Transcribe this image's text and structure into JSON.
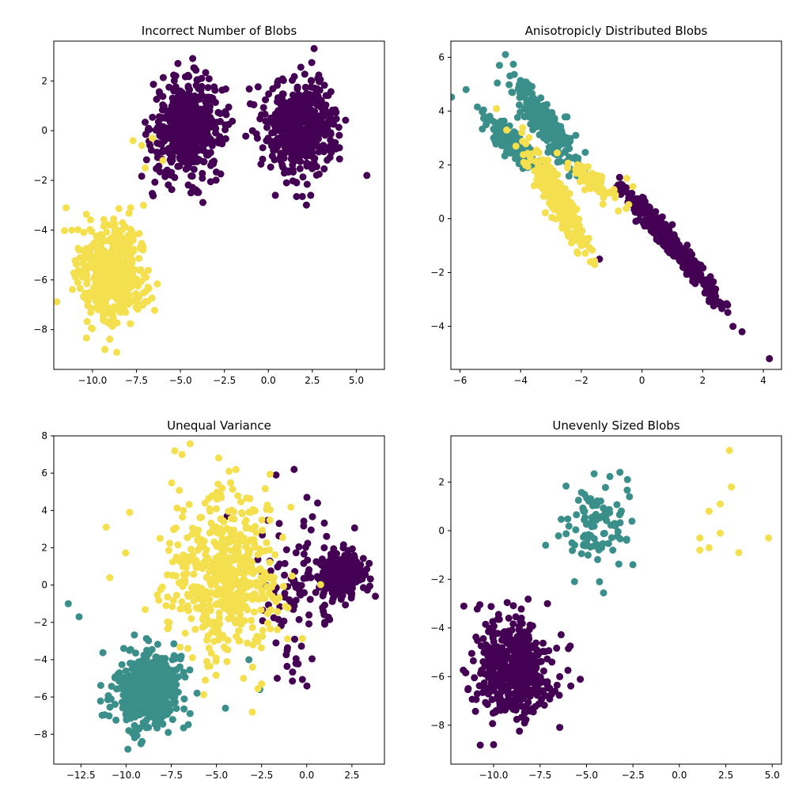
{
  "colors": {
    "purple": "#440154",
    "teal": "#3b8f8a",
    "yellow": "#f4e04f"
  },
  "chart_data": [
    {
      "type": "scatter",
      "title": "Incorrect Number of Blobs",
      "xlim": [
        -12.2,
        6.6
      ],
      "ylim": [
        -9.6,
        3.6
      ],
      "xticks": [
        -10.0,
        -7.5,
        -5.0,
        -2.5,
        0.0,
        2.5,
        5.0
      ],
      "xtick_labels": [
        "−10.0",
        "−7.5",
        "−5.0",
        "−2.5",
        "0.0",
        "2.5",
        "5.0"
      ],
      "yticks": [
        -8,
        -6,
        -4,
        -2,
        0,
        2
      ],
      "ytick_labels": [
        "−8",
        "−6",
        "−4",
        "−2",
        "0",
        "2"
      ],
      "series": [
        {
          "color": "purple",
          "blobs": [
            {
              "n": 500,
              "cx": -4.6,
              "cy": 0.1,
              "sx": 1.0,
              "sy": 0.95,
              "rho": 0
            },
            {
              "n": 500,
              "cx": 1.9,
              "cy": 0.2,
              "sx": 1.0,
              "sy": 0.95,
              "rho": 0
            }
          ],
          "points": [
            [
              -4.3,
              2.9
            ],
            [
              2.6,
              3.3
            ],
            [
              5.6,
              -1.8
            ],
            [
              0.4,
              -2.6
            ],
            [
              -4.4,
              -2.5
            ],
            [
              -0.9,
              0.0
            ]
          ]
        },
        {
          "color": "yellow",
          "blobs": [
            {
              "n": 500,
              "cx": -8.9,
              "cy": -5.7,
              "sx": 1.0,
              "sy": 1.0,
              "rho": 0
            }
          ],
          "points": [
            [
              -7.7,
              -0.4
            ],
            [
              -7.2,
              -0.6
            ],
            [
              -6.6,
              -0.3
            ],
            [
              -6.0,
              -1.2
            ],
            [
              -7.0,
              -1.5
            ],
            [
              -9.3,
              -8.8
            ],
            [
              -11.5,
              -3.1
            ],
            [
              -7.1,
              -3.0
            ]
          ]
        }
      ]
    },
    {
      "type": "scatter",
      "title": "Anisotropicly Distributed Blobs",
      "xlim": [
        -6.3,
        4.6
      ],
      "ylim": [
        -5.6,
        6.6
      ],
      "xticks": [
        -6,
        -4,
        -2,
        0,
        2,
        4
      ],
      "xtick_labels": [
        "−6",
        "−4",
        "−2",
        "0",
        "2",
        "4"
      ],
      "yticks": [
        -4,
        -2,
        0,
        2,
        4,
        6
      ],
      "ytick_labels": [
        "−4",
        "−2",
        "0",
        "2",
        "4",
        "6"
      ],
      "series": [
        {
          "color": "purple",
          "blobs": [
            {
              "n": 420,
              "cx": 1.0,
              "cy": -1.0,
              "sx": 0.75,
              "sy": 1.0,
              "rho": -0.97
            }
          ],
          "points": [
            [
              4.2,
              -5.2
            ],
            [
              3.3,
              -4.2
            ],
            [
              3.0,
              -4.0
            ],
            [
              -1.4,
              -1.5
            ]
          ]
        },
        {
          "color": "teal",
          "blobs": [
            {
              "n": 230,
              "cx": -3.2,
              "cy": 3.6,
              "sx": 0.55,
              "sy": 0.85,
              "rho": -0.9
            },
            {
              "n": 190,
              "cx": -4.3,
              "cy": 2.8,
              "sx": 0.45,
              "sy": 0.5,
              "rho": -0.88
            }
          ],
          "points": [
            [
              -5.8,
              4.8
            ],
            [
              -4.5,
              6.1
            ],
            [
              -5.2,
              3.8
            ],
            [
              -4.7,
              5.7
            ]
          ]
        },
        {
          "color": "yellow",
          "blobs": [
            {
              "n": 300,
              "cx": -2.8,
              "cy": 0.7,
              "sx": 0.5,
              "sy": 0.9,
              "rho": -0.9
            },
            {
              "n": 100,
              "cx": -1.6,
              "cy": 1.4,
              "sx": 0.4,
              "sy": 0.35,
              "rho": -0.85
            }
          ],
          "points": [
            [
              -0.5,
              1.5
            ],
            [
              -0.3,
              1.2
            ],
            [
              -1.7,
              -1.6
            ],
            [
              -2.0,
              -1.0
            ]
          ]
        }
      ]
    },
    {
      "type": "scatter",
      "title": "Unequal Variance",
      "xlim": [
        -14.0,
        4.3
      ],
      "ylim": [
        -9.6,
        8.0
      ],
      "xticks": [
        -12.5,
        -10.0,
        -7.5,
        -5.0,
        -2.5,
        0.0,
        2.5
      ],
      "xtick_labels": [
        "−12.5",
        "−10.0",
        "−7.5",
        "−5.0",
        "−2.5",
        "0.0",
        "2.5"
      ],
      "yticks": [
        -8,
        -6,
        -4,
        -2,
        0,
        2,
        4,
        6,
        8
      ],
      "ytick_labels": [
        "−8",
        "−6",
        "−4",
        "−2",
        "0",
        "2",
        "4",
        "6",
        "8"
      ],
      "series": [
        {
          "color": "purple",
          "blobs": [
            {
              "n": 350,
              "cx": 1.9,
              "cy": 0.5,
              "sx": 0.55,
              "sy": 0.55,
              "rho": 0
            },
            {
              "n": 110,
              "cx": -0.5,
              "cy": -0.2,
              "sx": 1.2,
              "sy": 2.2,
              "rho": 0
            }
          ],
          "points": [
            [
              -0.7,
              6.2
            ],
            [
              -1.7,
              5.9
            ],
            [
              0.6,
              4.4
            ],
            [
              -0.6,
              -4.2
            ],
            [
              3.8,
              -0.6
            ]
          ]
        },
        {
          "color": "teal",
          "blobs": [
            {
              "n": 500,
              "cx": -8.8,
              "cy": -5.6,
              "sx": 1.0,
              "sy": 1.0,
              "rho": 0
            }
          ],
          "points": [
            [
              -13.2,
              -1.0
            ],
            [
              -12.6,
              -1.7
            ],
            [
              -9.9,
              -8.8
            ],
            [
              -4.5,
              -6.6
            ],
            [
              -2.6,
              -5.6
            ],
            [
              -3.2,
              -4.0
            ]
          ]
        },
        {
          "color": "yellow",
          "blobs": [
            {
              "n": 520,
              "cx": -4.6,
              "cy": 0.5,
              "sx": 1.6,
              "sy": 2.2,
              "rho": 0
            }
          ],
          "points": [
            [
              -7.3,
              7.2
            ],
            [
              -6.9,
              7.0
            ],
            [
              -11.1,
              3.1
            ],
            [
              -9.8,
              3.9
            ],
            [
              -10.9,
              0.4
            ],
            [
              -2.5,
              -5.3
            ],
            [
              -3.0,
              -4.4
            ],
            [
              -3.5,
              -5.0
            ],
            [
              -4.3,
              6.1
            ]
          ]
        }
      ]
    },
    {
      "type": "scatter",
      "title": "Unevenly Sized Blobs",
      "xlim": [
        -12.3,
        5.5
      ],
      "ylim": [
        -9.6,
        3.9
      ],
      "xticks": [
        -10.0,
        -7.5,
        -5.0,
        -2.5,
        0.0,
        2.5,
        5.0
      ],
      "xtick_labels": [
        "−10.0",
        "−7.5",
        "−5.0",
        "−2.5",
        "0.0",
        "2.5",
        "5.0"
      ],
      "yticks": [
        -8,
        -6,
        -4,
        -2,
        0,
        2
      ],
      "ytick_labels": [
        "−8",
        "−6",
        "−4",
        "−2",
        "0",
        "2"
      ],
      "series": [
        {
          "color": "purple",
          "blobs": [
            {
              "n": 500,
              "cx": -8.9,
              "cy": -5.7,
              "sx": 1.0,
              "sy": 1.0,
              "rho": 0
            }
          ],
          "points": [
            [
              -10.0,
              -8.8
            ],
            [
              -11.6,
              -3.1
            ],
            [
              -7.1,
              -3.0
            ]
          ]
        },
        {
          "color": "teal",
          "blobs": [
            {
              "n": 100,
              "cx": -4.5,
              "cy": 0.3,
              "sx": 0.95,
              "sy": 0.9,
              "rho": 0
            }
          ],
          "points": [
            [
              -3.2,
              2.4
            ],
            [
              -7.2,
              -0.6
            ],
            [
              -4.3,
              -2.1
            ],
            [
              -2.5,
              -1.4
            ]
          ]
        },
        {
          "color": "yellow",
          "blobs": [],
          "points": [
            [
              2.7,
              3.3
            ],
            [
              2.8,
              1.8
            ],
            [
              2.2,
              1.1
            ],
            [
              1.6,
              0.8
            ],
            [
              2.2,
              -0.1
            ],
            [
              1.1,
              -0.3
            ],
            [
              4.8,
              -0.3
            ],
            [
              1.6,
              -0.7
            ],
            [
              1.1,
              -0.8
            ],
            [
              3.2,
              -0.9
            ]
          ]
        }
      ]
    }
  ]
}
